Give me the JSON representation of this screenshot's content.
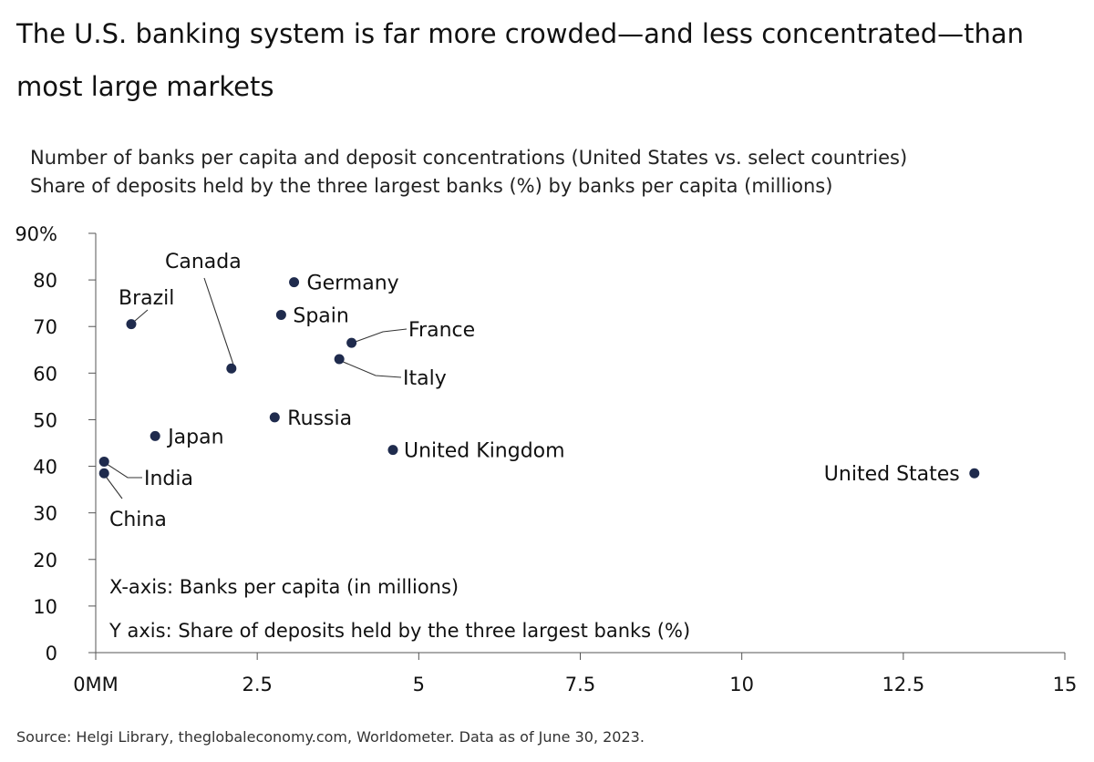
{
  "title": "The U.S. banking system is far more crowded—and less concentrated—than most large markets",
  "subtitle_line1": "Number of banks per capita and deposit concentrations (United States vs. select countries)",
  "subtitle_line2": "Share of deposits held by the three largest banks (%) by banks per capita (millions)",
  "source": "Source: Helgi Library, theglobaleconomy.com, Worldometer. Data as of June 30, 2023.",
  "colors": {
    "point": "#1f2b4d",
    "axis": "#555555",
    "text": "#111111"
  },
  "chart_data": {
    "type": "scatter",
    "xlim": [
      0,
      15
    ],
    "ylim": [
      0,
      90
    ],
    "x_ticks": [
      0,
      2.5,
      5,
      7.5,
      10,
      12.5,
      15
    ],
    "x_tick_labels": [
      "0MM",
      "2.5",
      "5",
      "7.5",
      "10",
      "12.5",
      "15"
    ],
    "y_ticks": [
      0,
      10,
      20,
      30,
      40,
      50,
      60,
      70,
      80,
      90
    ],
    "y_tick_labels": [
      "0",
      "10",
      "20",
      "30",
      "40",
      "50",
      "60",
      "70",
      "80",
      "90%"
    ],
    "grid": false,
    "annotations": [
      "X-axis: Banks per capita (in millions)",
      "Y axis: Share of deposits held by the three largest banks (%)"
    ],
    "points": [
      {
        "label": "Brazil",
        "x": 0.55,
        "y": 70.5
      },
      {
        "label": "Canada",
        "x": 2.1,
        "y": 61
      },
      {
        "label": "Germany",
        "x": 3.07,
        "y": 79.5
      },
      {
        "label": "Spain",
        "x": 2.87,
        "y": 72.5
      },
      {
        "label": "France",
        "x": 3.96,
        "y": 66.5
      },
      {
        "label": "Italy",
        "x": 3.77,
        "y": 63
      },
      {
        "label": "Russia",
        "x": 2.77,
        "y": 50.5
      },
      {
        "label": "Japan",
        "x": 0.92,
        "y": 46.5
      },
      {
        "label": "United Kingdom",
        "x": 4.6,
        "y": 43.5
      },
      {
        "label": "India",
        "x": 0.13,
        "y": 41
      },
      {
        "label": "China",
        "x": 0.13,
        "y": 38.5
      },
      {
        "label": "United States",
        "x": 13.6,
        "y": 38.5
      }
    ]
  }
}
